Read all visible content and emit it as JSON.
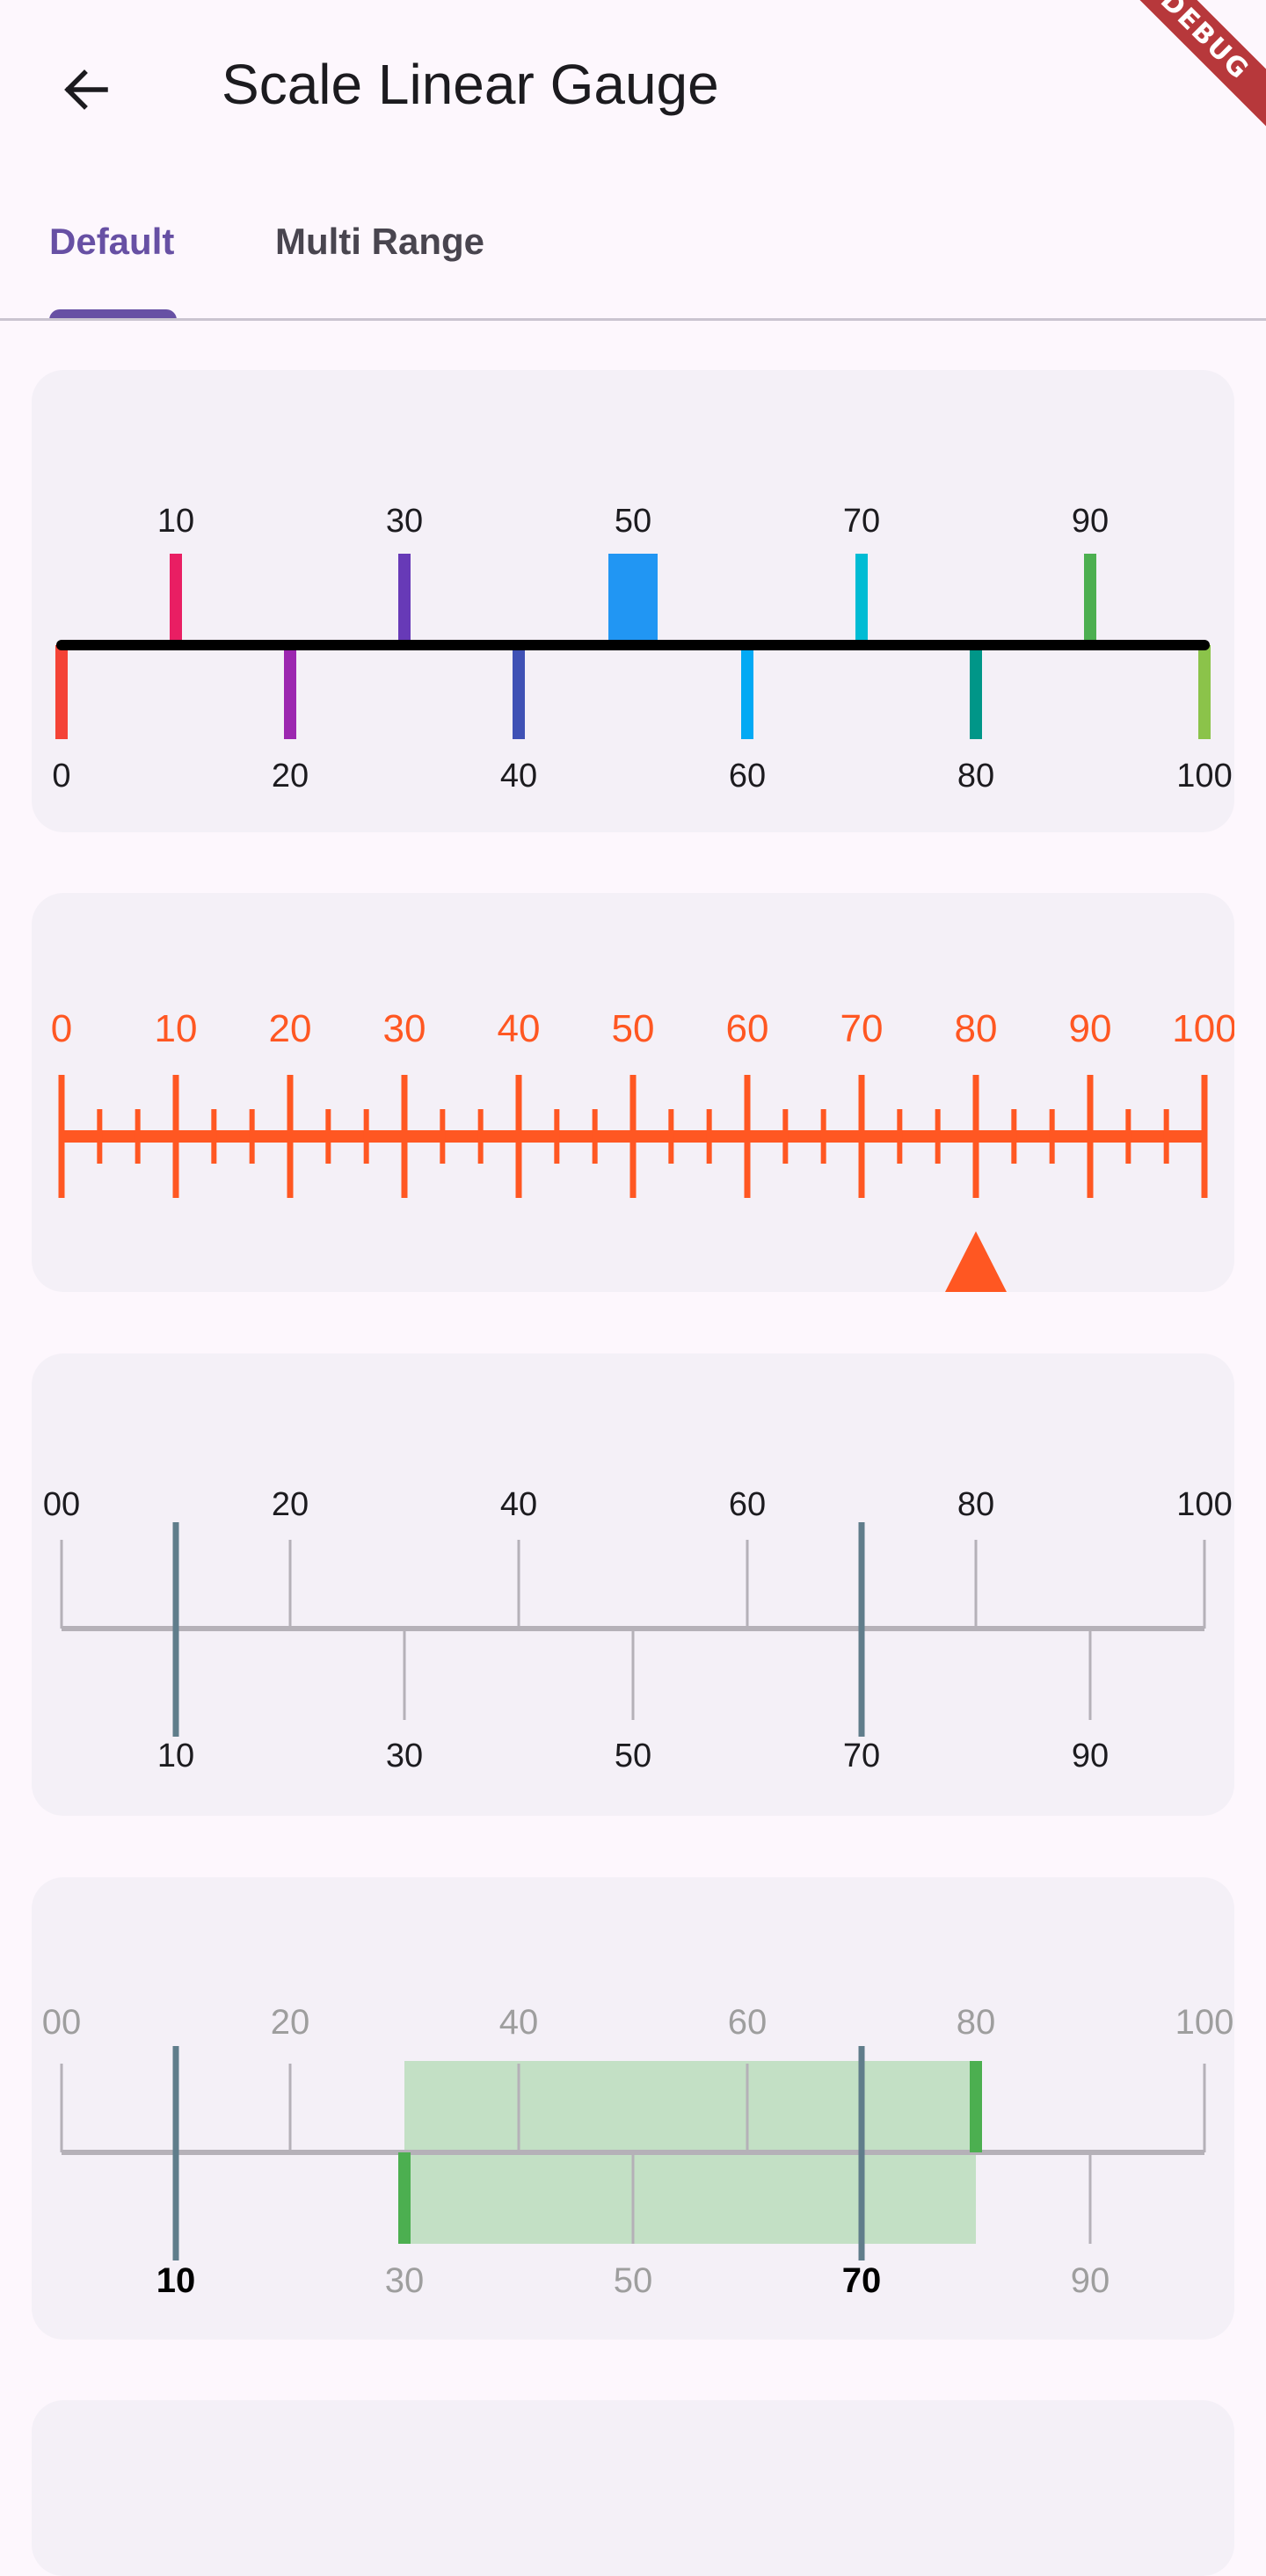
{
  "appbar": {
    "title": "Scale Linear Gauge",
    "back_icon": "arrow-left-icon",
    "debug_banner": "DEBUG"
  },
  "tabs": [
    {
      "label": "Default",
      "active": true
    },
    {
      "label": "Multi Range",
      "active": false
    }
  ],
  "gauges": [
    {
      "id": "colored-ticks",
      "min": 0,
      "max": 100,
      "labels_top": [
        "10",
        "30",
        "50",
        "70",
        "90"
      ],
      "labels_bottom": [
        "0",
        "20",
        "40",
        "60",
        "80",
        "100"
      ],
      "tick_colors": [
        "#f44336",
        "#e91e63",
        "#9c27b0",
        "#673ab7",
        "#3f51b5",
        "#2196f3",
        "#03a9f4",
        "#00bcd4",
        "#009688",
        "#4caf50",
        "#8bc34a"
      ],
      "axis_color": "#000000"
    },
    {
      "id": "orange-pointer",
      "min": 0,
      "max": 100,
      "labels": [
        "0",
        "10",
        "20",
        "30",
        "40",
        "50",
        "60",
        "70",
        "80",
        "90",
        "100"
      ],
      "color": "#ff5722",
      "pointer_value": 80
    },
    {
      "id": "grey-needles",
      "min": 0,
      "max": 100,
      "labels_top": [
        "00",
        "20",
        "40",
        "60",
        "80",
        "100"
      ],
      "labels_bottom": [
        "10",
        "30",
        "50",
        "70",
        "90"
      ],
      "needle_values": [
        10,
        70
      ],
      "axis_color": "#b5b1b8",
      "needle_color": "#607d8b"
    },
    {
      "id": "range-band",
      "min": 0,
      "max": 100,
      "labels_top": [
        "00",
        "20",
        "40",
        "60",
        "80",
        "100"
      ],
      "labels_bottom": [
        "10",
        "30",
        "50",
        "70",
        "90"
      ],
      "bold_labels": [
        "10",
        "70"
      ],
      "range": [
        30,
        80
      ],
      "needle_values": [
        10,
        70
      ],
      "axis_color": "#b5b1b8",
      "label_color": "#9e9e9e",
      "range_fill": "#c3e0c5",
      "range_edge_color": "#4caf50",
      "needle_color": "#607d8b"
    }
  ]
}
